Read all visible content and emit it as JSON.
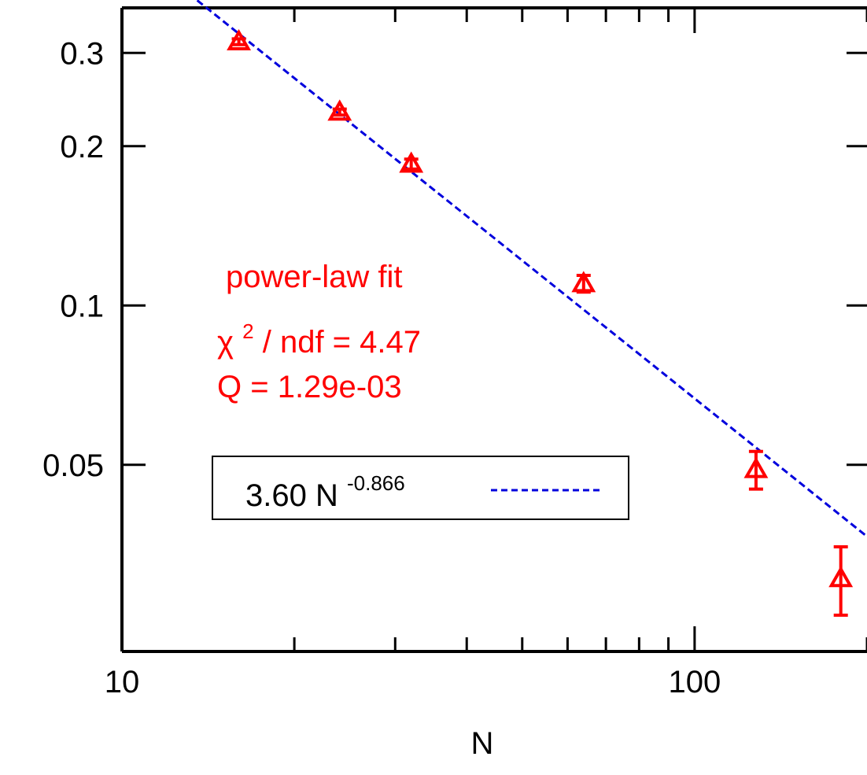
{
  "chart_data": {
    "type": "scatter",
    "title": "",
    "xlabel": "N",
    "ylabel": "",
    "x_scale": "log",
    "y_scale": "log",
    "xlim": [
      10,
      200
    ],
    "ylim": [
      0.0222,
      0.365
    ],
    "x_ticks": [
      {
        "value": 10,
        "label": "10"
      },
      {
        "value": 100,
        "label": "100"
      }
    ],
    "y_ticks": [
      {
        "value": 0.05,
        "label": "0.05"
      },
      {
        "value": 0.1,
        "label": "0.1"
      },
      {
        "value": 0.2,
        "label": "0.2"
      },
      {
        "value": 0.3,
        "label": "0.3"
      }
    ],
    "grid": false,
    "series": [
      {
        "marker": "open-triangle",
        "color": "#ff0000",
        "points": [
          {
            "x": 16,
            "y": 0.315,
            "err": 0.004
          },
          {
            "x": 24,
            "y": 0.232,
            "err": 0.003
          },
          {
            "x": 32,
            "y": 0.185,
            "err": 0.004
          },
          {
            "x": 64,
            "y": 0.11,
            "err": 0.004
          },
          {
            "x": 128,
            "y": 0.049,
            "err": 0.004
          },
          {
            "x": 180,
            "y": 0.0305,
            "err": 0.0045
          }
        ]
      },
      {
        "name": "3.60 N^-0.866",
        "type": "line",
        "style": "dashed",
        "color": "#0000dd",
        "function": {
          "kind": "power",
          "a": 3.6,
          "b": -0.866
        }
      }
    ],
    "legend": {
      "position": "lower-left",
      "entries": [
        {
          "coef": "3.60 N",
          "exponent": "-0.866",
          "color": "#0000dd",
          "style": "dashed"
        }
      ]
    },
    "annotations": {
      "color": "#ff0000",
      "line1": "power-law fit",
      "chi_symbol": "χ",
      "chi_sup": "2",
      "line2_rest": " / ndf =  4.47",
      "line3": "Q = 1.29e-03"
    }
  }
}
